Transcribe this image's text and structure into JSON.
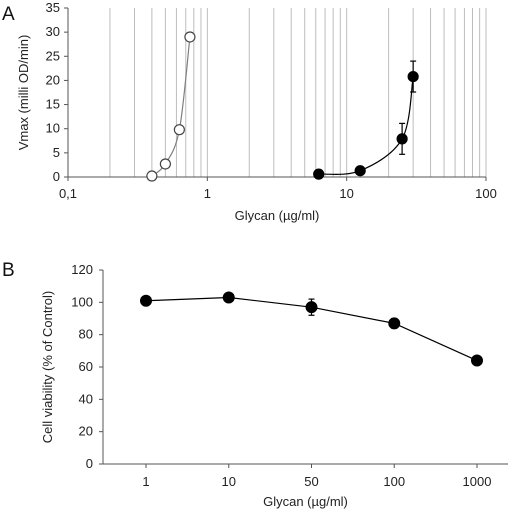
{
  "chart_data": [
    {
      "panel_label": "A",
      "type": "scatter",
      "xscale": "log",
      "xlabel": "Glycan (µg/ml)",
      "ylabel": "Vmax (milli OD/min)",
      "xlim": [
        0.1,
        100
      ],
      "ylim": [
        0,
        35
      ],
      "xticks": [
        0.1,
        1,
        10,
        100
      ],
      "xtick_labels": [
        "0,1",
        "1",
        "10",
        "100"
      ],
      "yticks": [
        0,
        5,
        10,
        15,
        20,
        25,
        30,
        35
      ],
      "ytick_labels": [
        "0",
        "5",
        "10",
        "15",
        "20",
        "25",
        "30",
        "35"
      ],
      "grid": "vertical log minor gridlines",
      "series": [
        {
          "marker": "open-circle",
          "color": "#7f7f7f",
          "points": [
            {
              "x": 0.4,
              "y": 0.2
            },
            {
              "x": 0.5,
              "y": 2.7
            },
            {
              "x": 0.63,
              "y": 9.8
            },
            {
              "x": 0.75,
              "y": 29
            }
          ]
        },
        {
          "marker": "filled-circle",
          "color": "#000000",
          "points": [
            {
              "x": 6.3,
              "y": 0.6
            },
            {
              "x": 12.5,
              "y": 1.3
            },
            {
              "x": 25,
              "y": 7.9,
              "err": 3.2
            },
            {
              "x": 30,
              "y": 20.8,
              "err": 3.2
            }
          ]
        }
      ]
    },
    {
      "panel_label": "B",
      "type": "line",
      "xlabel": "Glycan (µg/ml)",
      "ylabel": "Cell viability (% of Control)",
      "categories": [
        "1",
        "10",
        "50",
        "100",
        "1000"
      ],
      "values": [
        101,
        103,
        97,
        87,
        64
      ],
      "errors": [
        0,
        0,
        5,
        3,
        0
      ],
      "ylim": [
        0,
        120
      ],
      "yticks": [
        0,
        20,
        40,
        60,
        80,
        100,
        120
      ],
      "ytick_labels": [
        "0",
        "20",
        "40",
        "60",
        "80",
        "100",
        "120"
      ],
      "grid": "none"
    }
  ]
}
